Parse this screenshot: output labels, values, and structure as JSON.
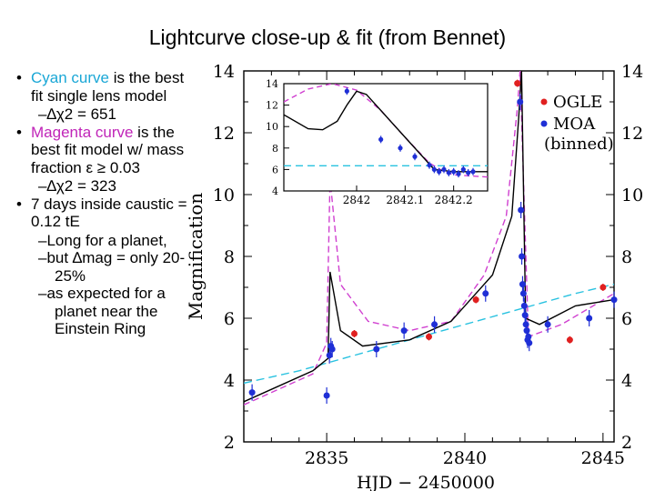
{
  "slide": {
    "title": "Lightcurve close-up & fit (from Bennet)",
    "bullets": [
      {
        "lead": "Cyan curve",
        "rest": " is the best fit single lens model",
        "sub": "–∆χ2 = 651"
      },
      {
        "lead": "Magenta curve",
        "rest": " is the best fit model w/ mass fraction ε ≥ 0.03",
        "sub": "–∆χ2 = 323"
      },
      {
        "text": "7 days inside caustic = 0.12 tE",
        "subs": [
          "–Long for a planet,",
          "–but ∆mag = only 20-25%",
          "–as expected for a planet near the Einstein Ring"
        ]
      }
    ]
  },
  "chart_data": [
    {
      "type": "scatter",
      "title": "",
      "xlabel": "HJD − 2450000",
      "ylabel": "Magnification",
      "xlim": [
        2832,
        2845.4
      ],
      "ylim": [
        2,
        14
      ],
      "x_ticks": [
        2835,
        2840,
        2845
      ],
      "y_ticks": [
        2,
        4,
        6,
        8,
        10,
        12,
        14
      ],
      "legend": {
        "position": "top-right",
        "entries": [
          "OGLE",
          "MOA",
          "(binned)"
        ]
      },
      "colors": {
        "ogle": "#e02020",
        "moa": "#1f2fd6",
        "black_fit": "#000000",
        "magenta_fit": "#d040d0",
        "cyan_fit": "#29c2e0"
      },
      "series": [
        {
          "name": "MOA",
          "x": [
            2832.3,
            2835.0,
            2835.1,
            2835.15,
            2835.2,
            2836.8,
            2837.8,
            2838.9,
            2840.75,
            2842.0,
            2842.03,
            2842.06,
            2842.09,
            2842.12,
            2842.15,
            2842.18,
            2842.21,
            2842.24,
            2842.27,
            2842.3,
            2842.33,
            2843.0,
            2844.5,
            2845.4
          ],
          "y": [
            3.6,
            3.5,
            4.8,
            5.1,
            5.0,
            5.0,
            5.6,
            5.8,
            6.8,
            13.0,
            9.5,
            8.0,
            7.1,
            6.8,
            6.4,
            6.1,
            5.8,
            5.6,
            5.3,
            5.4,
            5.2,
            5.8,
            6.0,
            6.6
          ]
        },
        {
          "name": "OGLE",
          "x": [
            2836.0,
            2838.7,
            2840.4,
            2841.9,
            2843.8,
            2845.0
          ],
          "y": [
            5.5,
            5.4,
            6.6,
            13.6,
            5.3,
            7.0
          ]
        },
        {
          "name": "Black fit",
          "x": [
            2832.0,
            2834.5,
            2835.05,
            2835.12,
            2835.5,
            2836.3,
            2838.0,
            2839.5,
            2841.0,
            2841.7,
            2841.95,
            2842.05,
            2842.2,
            2842.7,
            2844.0,
            2845.4
          ],
          "y": [
            3.3,
            4.3,
            4.7,
            7.5,
            5.6,
            5.1,
            5.3,
            5.9,
            7.4,
            9.3,
            12.5,
            14.0,
            6.0,
            5.8,
            6.4,
            6.6
          ]
        },
        {
          "name": "Magenta fit",
          "x": [
            2832.0,
            2834.5,
            2835.0,
            2835.12,
            2835.5,
            2836.5,
            2838.0,
            2839.5,
            2840.7,
            2841.5,
            2841.9,
            2842.0,
            2842.3,
            2843.5,
            2845.4
          ],
          "y": [
            3.2,
            4.2,
            5.2,
            10.5,
            7.1,
            5.9,
            5.6,
            5.9,
            7.4,
            9.3,
            12.8,
            14.0,
            5.4,
            5.8,
            6.8
          ]
        },
        {
          "name": "Cyan fit",
          "x": [
            2832.0,
            2834.0,
            2836.0,
            2838.0,
            2840.0,
            2842.0,
            2844.0,
            2845.4
          ],
          "y": [
            3.9,
            4.3,
            4.8,
            5.3,
            5.8,
            6.3,
            6.8,
            7.1
          ]
        }
      ]
    },
    {
      "type": "scatter",
      "title": "inset",
      "xlim": [
        2841.85,
        2842.27
      ],
      "ylim": [
        4,
        14
      ],
      "x_ticks": [
        2842,
        2842.1,
        2842.2
      ],
      "y_ticks": [
        4,
        6,
        8,
        10,
        12,
        14
      ],
      "series": [
        {
          "name": "MOA",
          "x": [
            2841.98,
            2842.05,
            2842.09,
            2842.12,
            2842.15,
            2842.16,
            2842.17,
            2842.18,
            2842.19,
            2842.2,
            2842.21,
            2842.22,
            2842.23,
            2842.24
          ],
          "y": [
            13.3,
            8.8,
            8.0,
            7.2,
            6.4,
            6.0,
            5.8,
            6.0,
            5.7,
            5.8,
            5.6,
            6.0,
            5.7,
            5.8
          ]
        },
        {
          "name": "Black fit",
          "x": [
            2841.85,
            2841.9,
            2841.93,
            2841.96,
            2841.98,
            2842.0,
            2842.02,
            2842.06,
            2842.1,
            2842.14,
            2842.16,
            2842.2,
            2842.27
          ],
          "y": [
            11.1,
            9.8,
            9.7,
            10.5,
            12.0,
            13.3,
            13.0,
            11.0,
            9.0,
            7.0,
            6.0,
            5.8,
            5.8
          ]
        },
        {
          "name": "Magenta fit",
          "x": [
            2841.85,
            2841.9,
            2841.95,
            2842.0,
            2842.05,
            2842.1,
            2842.15,
            2842.18,
            2842.2,
            2842.27
          ],
          "y": [
            12.3,
            13.5,
            14.0,
            13.4,
            11.5,
            9.0,
            6.6,
            5.8,
            5.5,
            5.3
          ]
        },
        {
          "name": "Cyan fit",
          "x": [
            2841.85,
            2842.27
          ],
          "y": [
            6.35,
            6.35
          ]
        }
      ]
    }
  ]
}
